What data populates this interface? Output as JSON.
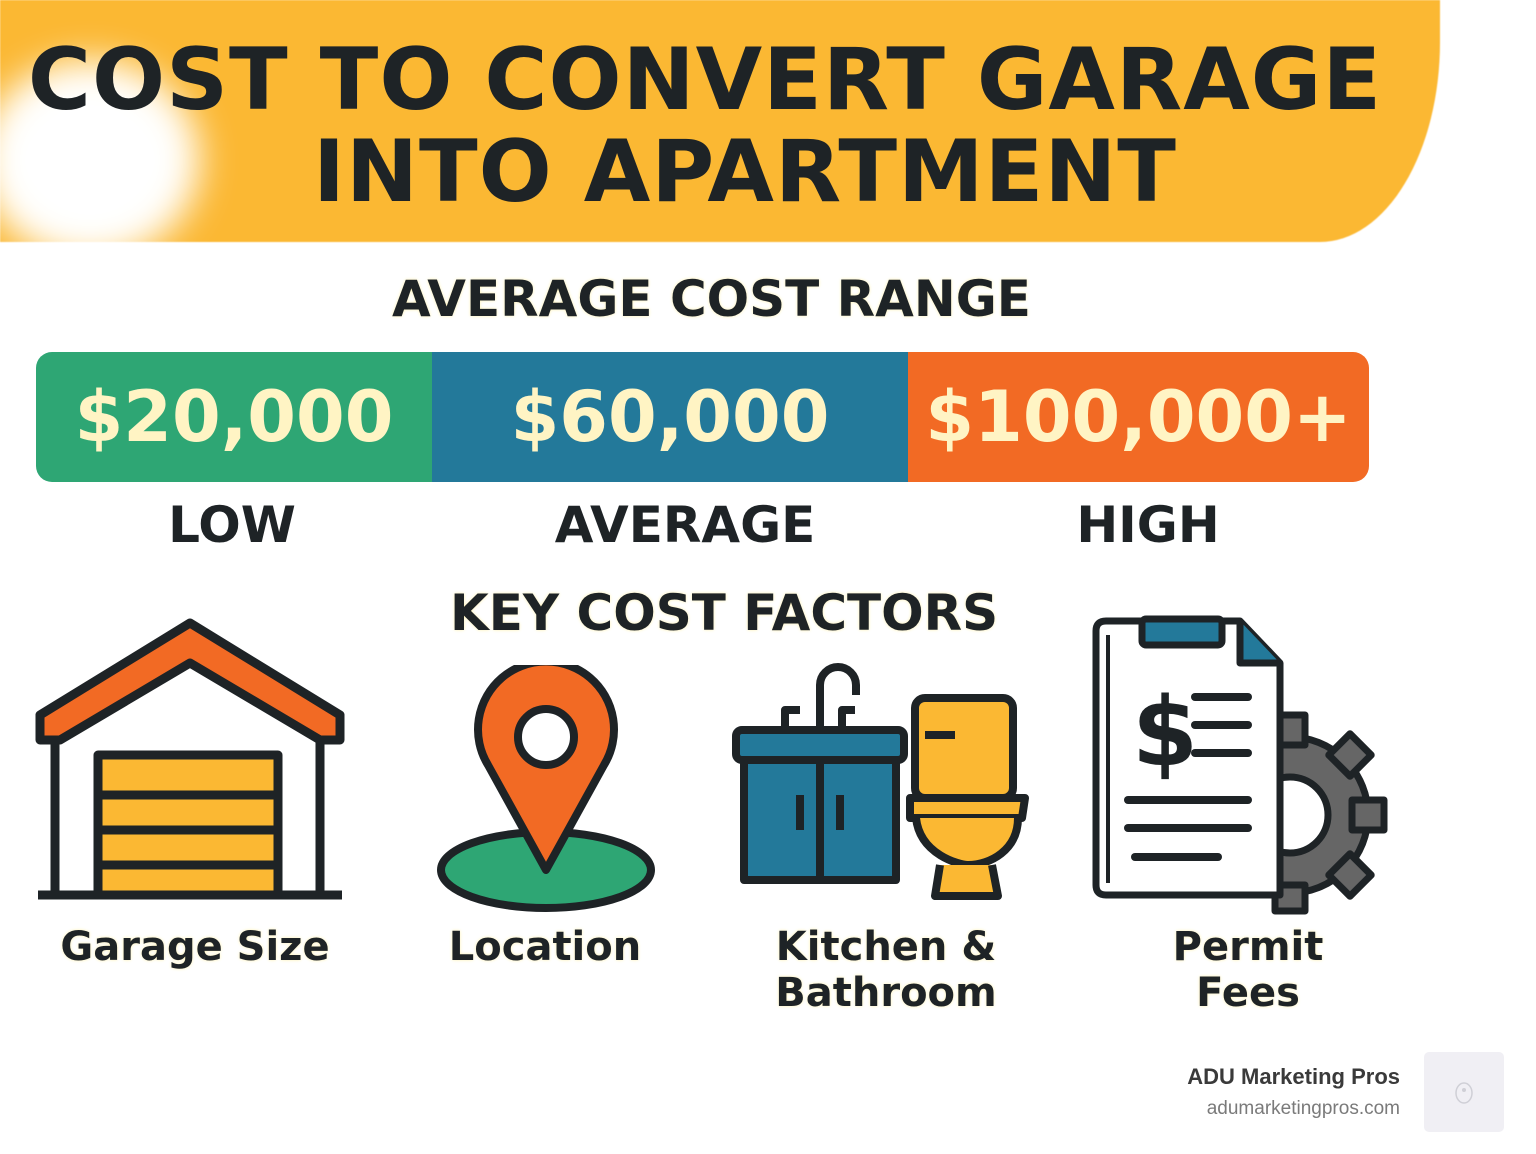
{
  "title": {
    "line1": "COST TO CONVERT GARAGE",
    "line2": "INTO APARTMENT"
  },
  "cost_range": {
    "heading": "AVERAGE COST RANGE",
    "segments": [
      {
        "value": "$20,000",
        "label": "LOW",
        "color": "#2ea674"
      },
      {
        "value": "$60,000",
        "label": "AVERAGE",
        "color": "#23799a"
      },
      {
        "value": "$100,000+",
        "label": "HIGH",
        "color": "#f26a24"
      }
    ]
  },
  "factors": {
    "heading": "KEY COST FACTORS",
    "items": [
      {
        "label": "Garage Size",
        "icon": "garage-icon"
      },
      {
        "label": "Location",
        "icon": "map-pin-icon"
      },
      {
        "label": "Kitchen & Bathroom",
        "icon": "sink-toilet-icon"
      },
      {
        "label": "Permit Fees",
        "icon": "document-gear-icon"
      }
    ]
  },
  "brand": {
    "name": "ADU Marketing Pros",
    "url": "adumarketingpros.com"
  },
  "colors": {
    "banner": "#fbb833",
    "text": "#1e2326"
  }
}
